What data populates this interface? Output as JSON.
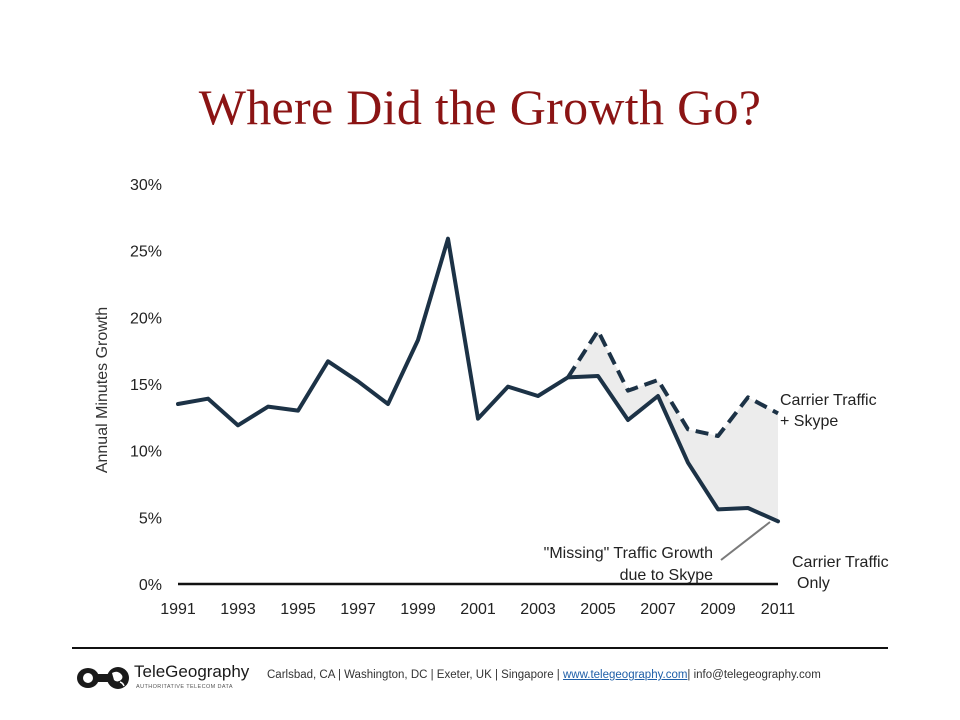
{
  "slide": {
    "title": "Where Did the Growth Go?"
  },
  "chart_data": {
    "type": "line",
    "title": "",
    "xlabel": "",
    "ylabel": "Annual Minutes Growth",
    "x": [
      1991,
      1992,
      1993,
      1994,
      1995,
      1996,
      1997,
      1998,
      1999,
      2000,
      2001,
      2002,
      2003,
      2004,
      2005,
      2006,
      2007,
      2008,
      2009,
      2010,
      2011
    ],
    "xticks": [
      "1991",
      "1993",
      "1995",
      "1997",
      "1999",
      "2001",
      "2003",
      "2005",
      "2007",
      "2009",
      "2011"
    ],
    "yticks": [
      "0%",
      "5%",
      "10%",
      "15%",
      "20%",
      "25%",
      "30%"
    ],
    "xlim": [
      1991,
      2011
    ],
    "ylim": [
      0,
      30
    ],
    "grid": false,
    "series": [
      {
        "name": "Carrier Traffic Only",
        "style": "solid",
        "values": [
          13.5,
          13.9,
          11.9,
          13.3,
          13.0,
          16.7,
          15.2,
          13.5,
          18.3,
          25.9,
          12.4,
          14.8,
          14.1,
          15.5,
          15.6,
          12.3,
          14.1,
          9.1,
          5.6,
          5.7,
          4.7
        ]
      },
      {
        "name": "Carrier Traffic + Skype",
        "style": "dashed",
        "x": [
          2004,
          2005,
          2006,
          2007,
          2008,
          2009,
          2010,
          2011
        ],
        "values": [
          15.5,
          19.0,
          14.5,
          15.3,
          11.6,
          11.1,
          14.0,
          12.8
        ]
      }
    ],
    "labels": {
      "upper_line1": "Carrier Traffic",
      "upper_line2": "+ Skype",
      "lower_line1": "Carrier Traffic",
      "lower_line2": "Only",
      "missing_line1": "\"Missing\" Traffic Growth",
      "missing_line2": "due to Skype"
    },
    "colors": {
      "line": "#1c3246",
      "shade": "#ececec",
      "pointer": "#7a7a7a"
    }
  },
  "footer": {
    "logo_name": "TeleGeography",
    "logo_tagline": "AUTHORITATIVE TELECOM DATA",
    "locations": "Carlsbad, CA | Washington, DC | Exeter, UK | Singapore |",
    "website": "www.telegeography.com",
    "email": "| info@telegeography.com"
  }
}
